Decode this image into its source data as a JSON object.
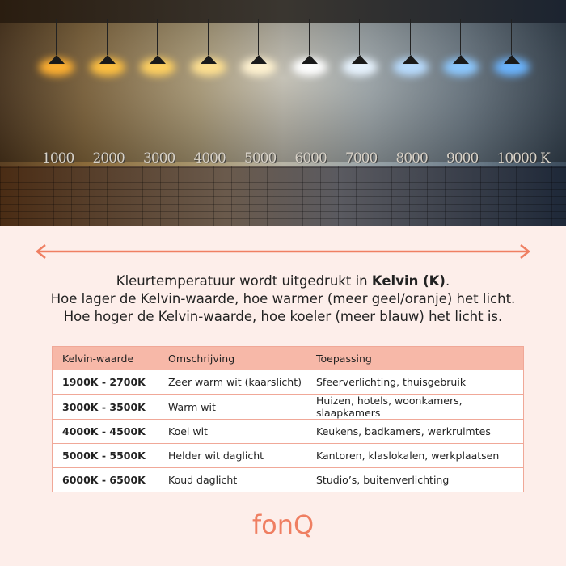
{
  "photo": {
    "kelvin_labels": [
      "1000",
      "2000",
      "3000",
      "4000",
      "5000",
      "6000",
      "7000",
      "8000",
      "9000",
      "10000 K"
    ],
    "lamp_colors": [
      "#ffb030",
      "#ffc040",
      "#ffd060",
      "#ffe090",
      "#fff2d0",
      "#ffffff",
      "#e8f4ff",
      "#b8dcff",
      "#8cc8ff",
      "#6ab4ff"
    ]
  },
  "intro": {
    "line1_pre": "Kleurtemperatuur wordt uitgedrukt in ",
    "line1_bold": "Kelvin (K)",
    "line1_post": ".",
    "line2": "Hoe lager de Kelvin-waarde, hoe warmer (meer geel/oranje) het licht.",
    "line3": "Hoe hoger de Kelvin-waarde, hoe koeler (meer blauw) het licht is."
  },
  "table": {
    "headers": [
      "Kelvin-waarde",
      "Omschrijving",
      "Toepassing"
    ],
    "rows": [
      [
        "1900K - 2700K",
        "Zeer warm wit (kaarslicht)",
        "Sfeerverlichting, thuisgebruik"
      ],
      [
        "3000K - 3500K",
        "Warm wit",
        "Huizen, hotels, woonkamers, slaapkamers"
      ],
      [
        "4000K - 4500K",
        "Koel wit",
        "Keukens, badkamers, werkruimtes"
      ],
      [
        "5000K - 5500K",
        "Helder wit daglicht",
        "Kantoren, klaslokalen, werkplaatsen"
      ],
      [
        "6000K - 6500K",
        "Koud daglicht",
        "Studio’s, buitenverlichting"
      ]
    ]
  },
  "logo": "fonQ",
  "colors": {
    "accent": "#ef7f62",
    "header_bg": "#f7b8a8",
    "page_bg": "#fdeeea"
  }
}
